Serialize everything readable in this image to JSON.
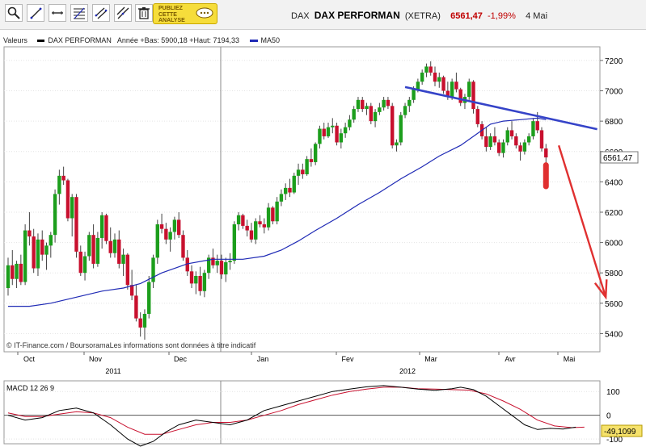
{
  "toolbar": {
    "buttons": [
      {
        "name": "zoom-tool-button",
        "icon": "magnifier-icon"
      },
      {
        "name": "trendline-tool-button",
        "icon": "diagonal-line-icon"
      },
      {
        "name": "horizontal-line-tool-button",
        "icon": "horizontal-line-icon"
      },
      {
        "name": "fibonacci-tool-button",
        "icon": "fibonacci-icon"
      },
      {
        "name": "channel-tool-button",
        "icon": "channel-icon"
      },
      {
        "name": "parallel-tool-button",
        "icon": "parallel-lines-icon"
      },
      {
        "name": "delete-tool-button",
        "icon": "trash-icon"
      }
    ],
    "promo_line1": "PUBLIEZ",
    "promo_line2": "CETTE",
    "promo_line3": "ANALYSE"
  },
  "header": {
    "market": "DAX",
    "name": "DAX PERFORMAN",
    "exchange": "(XETRA)",
    "price": "6561,47",
    "change": "-1,99%",
    "date": "4 Mai"
  },
  "legend": {
    "valeurs": "Valeurs",
    "series": "DAX PERFORMAN",
    "stats": "Année +Bas: 5900,18 +Haut: 7194,33",
    "ma": "MA50"
  },
  "colors": {
    "up": "#1c9e1c",
    "down": "#c8102e",
    "ma": "#1f2ab5",
    "trend": "#3543c8",
    "arrow": "#e03030",
    "macd": "#000000",
    "signal": "#c8102e"
  },
  "chart_data": [
    {
      "type": "candlestick",
      "y_ticks": [
        "7200",
        "7000",
        "6800",
        "6600",
        "6400",
        "6200",
        "6000",
        "5800",
        "5600",
        "5400"
      ],
      "ylim": [
        5280,
        7290
      ],
      "month_labels": [
        "Oct",
        "Nov",
        "Dec",
        "Jan",
        "Fev",
        "Mar",
        "Avr",
        "Mai"
      ],
      "year_labels": [
        "2011",
        "2012"
      ],
      "last_value_label": "6561,47",
      "source_note": "© IT-Finance.com / BoursoramaLes informations sont données à titre indicatif",
      "ohlc": [
        [
          5700,
          5900,
          5650,
          5850
        ],
        [
          5850,
          5950,
          5720,
          5760
        ],
        [
          5760,
          5880,
          5700,
          5860
        ],
        [
          5860,
          5920,
          5720,
          5740
        ],
        [
          5740,
          6120,
          5720,
          6080
        ],
        [
          6080,
          6200,
          5980,
          6040
        ],
        [
          6040,
          6090,
          5800,
          5830
        ],
        [
          5830,
          6060,
          5780,
          6020
        ],
        [
          6020,
          6080,
          5880,
          5920
        ],
        [
          5920,
          6000,
          5820,
          5980
        ],
        [
          5980,
          6070,
          5900,
          6050
        ],
        [
          6050,
          6350,
          6000,
          6320
        ],
        [
          6320,
          6480,
          6250,
          6440
        ],
        [
          6440,
          6500,
          6380,
          6410
        ],
        [
          6410,
          6420,
          6140,
          6160
        ],
        [
          6160,
          6320,
          6040,
          6300
        ],
        [
          6300,
          6320,
          5900,
          5940
        ],
        [
          5940,
          5980,
          5780,
          5800
        ],
        [
          5800,
          5940,
          5750,
          5910
        ],
        [
          5910,
          6070,
          5880,
          6050
        ],
        [
          6050,
          6120,
          5830,
          5860
        ],
        [
          5860,
          6070,
          5840,
          6030
        ],
        [
          6030,
          6200,
          5960,
          6180
        ],
        [
          6180,
          6190,
          5990,
          6010
        ],
        [
          6010,
          6100,
          5900,
          5930
        ],
        [
          5930,
          6060,
          5900,
          6020
        ],
        [
          6020,
          6080,
          5830,
          5860
        ],
        [
          5860,
          5960,
          5780,
          5920
        ],
        [
          5920,
          5930,
          5690,
          5720
        ],
        [
          5720,
          5820,
          5620,
          5650
        ],
        [
          5650,
          5720,
          5480,
          5500
        ],
        [
          5500,
          5540,
          5380,
          5440
        ],
        [
          5440,
          5560,
          5360,
          5530
        ],
        [
          5530,
          5780,
          5500,
          5740
        ],
        [
          5740,
          5920,
          5700,
          5900
        ],
        [
          5900,
          6150,
          5860,
          6120
        ],
        [
          6120,
          6190,
          6060,
          6090
        ],
        [
          6090,
          6130,
          5990,
          6020
        ],
        [
          6020,
          6100,
          5940,
          6070
        ],
        [
          6070,
          6170,
          6020,
          6150
        ],
        [
          6150,
          6200,
          6030,
          6050
        ],
        [
          6050,
          6080,
          5880,
          5900
        ],
        [
          5900,
          5950,
          5780,
          5810
        ],
        [
          5810,
          5850,
          5700,
          5730
        ],
        [
          5730,
          5810,
          5660,
          5780
        ],
        [
          5780,
          5840,
          5650,
          5680
        ],
        [
          5680,
          5820,
          5640,
          5800
        ],
        [
          5800,
          5920,
          5760,
          5900
        ],
        [
          5900,
          5960,
          5830,
          5850
        ],
        [
          5850,
          5920,
          5800,
          5880
        ],
        [
          5880,
          5920,
          5760,
          5790
        ],
        [
          5790,
          5900,
          5740,
          5870
        ],
        [
          5870,
          5930,
          5820,
          5880
        ],
        [
          5880,
          6140,
          5860,
          6120
        ],
        [
          6120,
          6200,
          6080,
          6180
        ],
        [
          6180,
          6190,
          6090,
          6110
        ],
        [
          6110,
          6150,
          6040,
          6080
        ],
        [
          6080,
          6130,
          6000,
          6020
        ],
        [
          6020,
          6160,
          5990,
          6140
        ],
        [
          6140,
          6180,
          6100,
          6120
        ],
        [
          6120,
          6160,
          6060,
          6100
        ],
        [
          6100,
          6260,
          6080,
          6230
        ],
        [
          6230,
          6240,
          6120,
          6140
        ],
        [
          6140,
          6300,
          6120,
          6270
        ],
        [
          6270,
          6350,
          6240,
          6320
        ],
        [
          6320,
          6390,
          6280,
          6360
        ],
        [
          6360,
          6420,
          6300,
          6330
        ],
        [
          6330,
          6460,
          6320,
          6440
        ],
        [
          6440,
          6520,
          6380,
          6480
        ],
        [
          6480,
          6520,
          6420,
          6450
        ],
        [
          6450,
          6570,
          6440,
          6550
        ],
        [
          6550,
          6620,
          6500,
          6530
        ],
        [
          6530,
          6660,
          6510,
          6650
        ],
        [
          6650,
          6770,
          6620,
          6750
        ],
        [
          6750,
          6790,
          6680,
          6700
        ],
        [
          6700,
          6790,
          6690,
          6760
        ],
        [
          6760,
          6820,
          6720,
          6770
        ],
        [
          6770,
          6790,
          6640,
          6660
        ],
        [
          6660,
          6750,
          6620,
          6720
        ],
        [
          6720,
          6790,
          6690,
          6760
        ],
        [
          6760,
          6840,
          6740,
          6810
        ],
        [
          6810,
          6900,
          6790,
          6880
        ],
        [
          6880,
          6960,
          6860,
          6940
        ],
        [
          6940,
          6960,
          6860,
          6880
        ],
        [
          6880,
          6920,
          6840,
          6900
        ],
        [
          6900,
          6920,
          6780,
          6800
        ],
        [
          6800,
          6880,
          6760,
          6860
        ],
        [
          6860,
          6920,
          6840,
          6890
        ],
        [
          6890,
          6960,
          6870,
          6940
        ],
        [
          6940,
          6960,
          6880,
          6900
        ],
        [
          6900,
          6920,
          6620,
          6640
        ],
        [
          6640,
          6680,
          6600,
          6660
        ],
        [
          6660,
          6860,
          6640,
          6840
        ],
        [
          6840,
          6920,
          6820,
          6900
        ],
        [
          6900,
          6960,
          6860,
          6940
        ],
        [
          6940,
          7030,
          6920,
          7010
        ],
        [
          7010,
          7080,
          6990,
          7060
        ],
        [
          7060,
          7140,
          7040,
          7120
        ],
        [
          7120,
          7180,
          7090,
          7160
        ],
        [
          7160,
          7194,
          7100,
          7120
        ],
        [
          7120,
          7160,
          7030,
          7060
        ],
        [
          7060,
          7120,
          7020,
          7090
        ],
        [
          7090,
          7100,
          6980,
          7000
        ],
        [
          7000,
          7060,
          6940,
          6960
        ],
        [
          6960,
          7080,
          6940,
          7060
        ],
        [
          7060,
          7120,
          6990,
          7010
        ],
        [
          7010,
          7020,
          6900,
          6920
        ],
        [
          6920,
          6980,
          6880,
          6960
        ],
        [
          6960,
          7080,
          6940,
          7060
        ],
        [
          7060,
          7070,
          6850,
          6880
        ],
        [
          6880,
          6900,
          6760,
          6780
        ],
        [
          6780,
          6800,
          6680,
          6700
        ],
        [
          6700,
          6760,
          6600,
          6630
        ],
        [
          6630,
          6720,
          6610,
          6700
        ],
        [
          6700,
          6760,
          6640,
          6660
        ],
        [
          6660,
          6680,
          6570,
          6590
        ],
        [
          6590,
          6680,
          6560,
          6660
        ],
        [
          6660,
          6760,
          6640,
          6740
        ],
        [
          6740,
          6800,
          6680,
          6700
        ],
        [
          6700,
          6720,
          6620,
          6640
        ],
        [
          6640,
          6660,
          6540,
          6600
        ],
        [
          6600,
          6680,
          6580,
          6660
        ],
        [
          6660,
          6720,
          6640,
          6700
        ],
        [
          6700,
          6820,
          6680,
          6800
        ],
        [
          6800,
          6860,
          6720,
          6740
        ],
        [
          6740,
          6760,
          6600,
          6620
        ],
        [
          6620,
          6650,
          6510,
          6561
        ]
      ],
      "ma50": [
        [
          0,
          5580
        ],
        [
          5,
          5580
        ],
        [
          10,
          5600
        ],
        [
          16,
          5640
        ],
        [
          22,
          5680
        ],
        [
          27,
          5700
        ],
        [
          31,
          5730
        ],
        [
          36,
          5800
        ],
        [
          42,
          5860
        ],
        [
          48,
          5890
        ],
        [
          55,
          5890
        ],
        [
          60,
          5910
        ],
        [
          64,
          5950
        ],
        [
          68,
          6010
        ],
        [
          72,
          6080
        ],
        [
          77,
          6160
        ],
        [
          82,
          6250
        ],
        [
          87,
          6330
        ],
        [
          92,
          6420
        ],
        [
          97,
          6500
        ],
        [
          101,
          6570
        ],
        [
          106,
          6640
        ],
        [
          110,
          6720
        ],
        [
          113,
          6780
        ],
        [
          116,
          6800
        ],
        [
          120,
          6810
        ],
        [
          124,
          6820
        ],
        [
          126,
          6810
        ]
      ],
      "trendline": [
        [
          93,
          7025
        ],
        [
          138,
          6747
        ]
      ],
      "arrow": [
        [
          129,
          6640
        ],
        [
          140,
          5640
        ]
      ],
      "projection_bar": [
        [
          126,
          6510
        ],
        [
          126,
          6370
        ]
      ]
    },
    {
      "type": "line",
      "title": "MACD 12 26 9",
      "y_ticks": [
        "100",
        "0",
        "-100"
      ],
      "ylim": [
        -120,
        145
      ],
      "last_value_label": "-49,1099",
      "macd": [
        [
          0,
          0
        ],
        [
          4,
          -20
        ],
        [
          8,
          -10
        ],
        [
          12,
          20
        ],
        [
          16,
          30
        ],
        [
          20,
          10
        ],
        [
          24,
          -40
        ],
        [
          28,
          -100
        ],
        [
          31,
          -130
        ],
        [
          34,
          -110
        ],
        [
          37,
          -70
        ],
        [
          40,
          -40
        ],
        [
          44,
          -20
        ],
        [
          48,
          -30
        ],
        [
          52,
          -40
        ],
        [
          56,
          -20
        ],
        [
          60,
          20
        ],
        [
          64,
          40
        ],
        [
          68,
          60
        ],
        [
          72,
          80
        ],
        [
          76,
          100
        ],
        [
          80,
          110
        ],
        [
          84,
          120
        ],
        [
          88,
          125
        ],
        [
          92,
          118
        ],
        [
          96,
          110
        ],
        [
          100,
          105
        ],
        [
          104,
          112
        ],
        [
          106,
          118
        ],
        [
          109,
          108
        ],
        [
          112,
          80
        ],
        [
          115,
          40
        ],
        [
          118,
          0
        ],
        [
          121,
          -40
        ],
        [
          124,
          -60
        ],
        [
          127,
          -55
        ],
        [
          130,
          -58
        ],
        [
          133,
          -50
        ]
      ],
      "signal": [
        [
          0,
          10
        ],
        [
          4,
          -5
        ],
        [
          8,
          -5
        ],
        [
          12,
          5
        ],
        [
          16,
          15
        ],
        [
          20,
          10
        ],
        [
          24,
          -10
        ],
        [
          28,
          -50
        ],
        [
          32,
          -80
        ],
        [
          36,
          -80
        ],
        [
          40,
          -60
        ],
        [
          44,
          -40
        ],
        [
          48,
          -30
        ],
        [
          52,
          -30
        ],
        [
          56,
          -20
        ],
        [
          60,
          0
        ],
        [
          64,
          20
        ],
        [
          68,
          45
        ],
        [
          72,
          65
        ],
        [
          76,
          85
        ],
        [
          80,
          100
        ],
        [
          84,
          110
        ],
        [
          88,
          118
        ],
        [
          92,
          118
        ],
        [
          96,
          112
        ],
        [
          100,
          110
        ],
        [
          104,
          108
        ],
        [
          108,
          106
        ],
        [
          112,
          90
        ],
        [
          116,
          60
        ],
        [
          120,
          25
        ],
        [
          124,
          -20
        ],
        [
          128,
          -45
        ],
        [
          132,
          -52
        ],
        [
          135,
          -50
        ]
      ]
    }
  ]
}
